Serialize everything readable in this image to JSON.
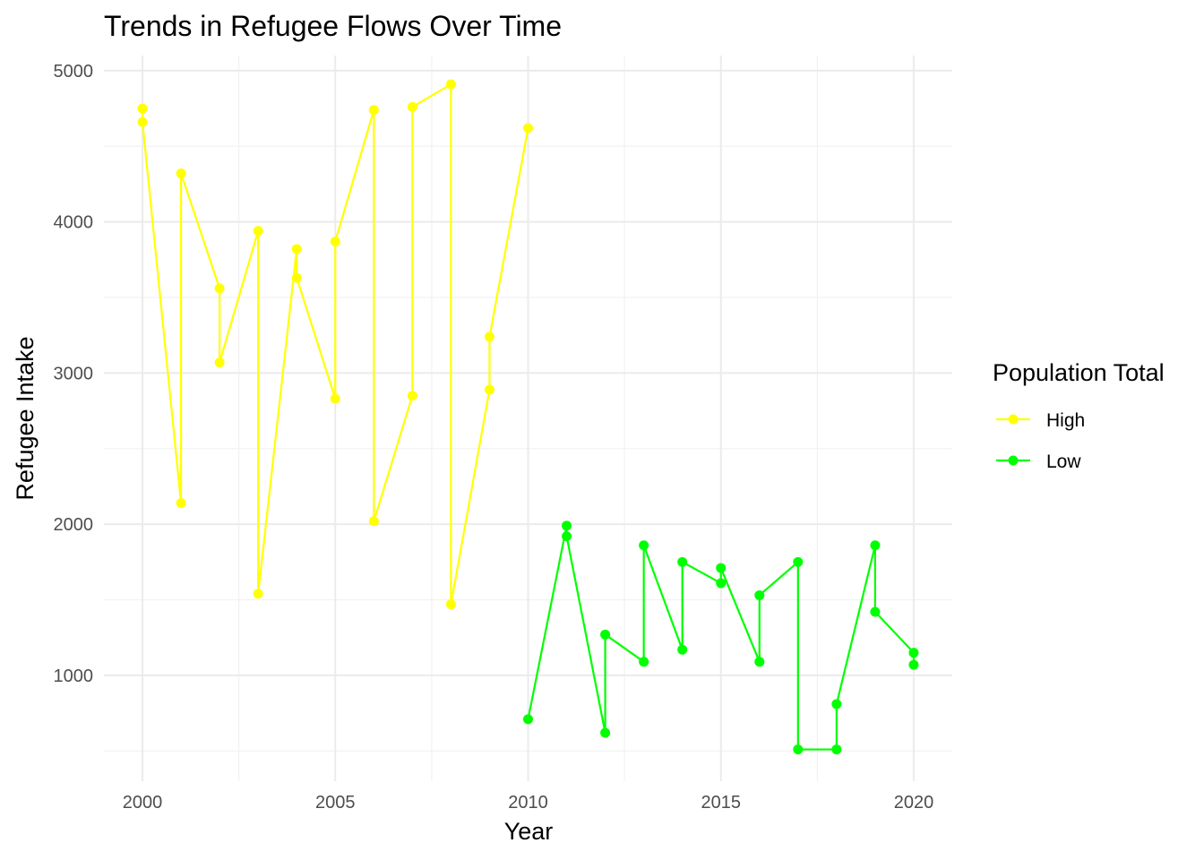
{
  "chart_data": {
    "type": "line",
    "title": "Trends in Refugee Flows Over Time",
    "xlabel": "Year",
    "ylabel": "Refugee Intake",
    "xlim": [
      1999.0,
      2021.0
    ],
    "ylim": [
      300,
      5100
    ],
    "x_ticks": [
      2000,
      2005,
      2010,
      2015,
      2020
    ],
    "x_tick_labels": [
      "2000",
      "2005",
      "2010",
      "2015",
      "2020"
    ],
    "y_ticks": [
      1000,
      2000,
      3000,
      4000,
      5000
    ],
    "y_tick_labels": [
      "1000",
      "2000",
      "3000",
      "4000",
      "5000"
    ],
    "grid": true,
    "legend": {
      "title": "Population Total",
      "placement": "right"
    },
    "series": [
      {
        "name": "High",
        "color": "#FFFF00",
        "points": [
          [
            2000,
            4750
          ],
          [
            2000,
            4660
          ],
          [
            2001,
            2140
          ],
          [
            2001,
            4320
          ],
          [
            2002,
            3560
          ],
          [
            2002,
            3070
          ],
          [
            2003,
            3940
          ],
          [
            2003,
            1540
          ],
          [
            2004,
            3820
          ],
          [
            2004,
            3630
          ],
          [
            2005,
            2830
          ],
          [
            2005,
            3870
          ],
          [
            2006,
            4740
          ],
          [
            2006,
            2020
          ],
          [
            2007,
            2850
          ],
          [
            2007,
            4760
          ],
          [
            2008,
            4910
          ],
          [
            2008,
            1470
          ],
          [
            2009,
            2890
          ],
          [
            2009,
            3240
          ],
          [
            2010,
            4620
          ]
        ]
      },
      {
        "name": "Low",
        "color": "#00FF00",
        "points": [
          [
            2010,
            710
          ],
          [
            2011,
            1990
          ],
          [
            2011,
            1920
          ],
          [
            2012,
            620
          ],
          [
            2012,
            1270
          ],
          [
            2013,
            1090
          ],
          [
            2013,
            1860
          ],
          [
            2014,
            1170
          ],
          [
            2014,
            1750
          ],
          [
            2015,
            1610
          ],
          [
            2015,
            1710
          ],
          [
            2016,
            1090
          ],
          [
            2016,
            1530
          ],
          [
            2017,
            1750
          ],
          [
            2017,
            510
          ],
          [
            2018,
            510
          ],
          [
            2018,
            810
          ],
          [
            2019,
            1860
          ],
          [
            2019,
            1420
          ],
          [
            2020,
            1150
          ],
          [
            2020,
            1070
          ]
        ]
      }
    ]
  }
}
